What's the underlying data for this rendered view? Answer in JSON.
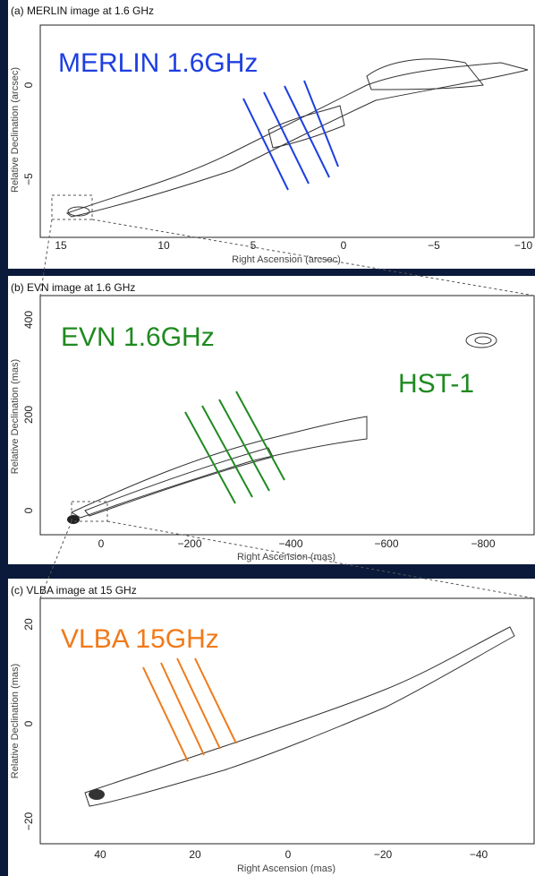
{
  "panels": [
    {
      "title": "(a) MERLIN image at 1.6 GHz",
      "overlays": [
        "MERLIN 1.6GHz"
      ],
      "x_axis_label": "Right Ascension   (arcsec)",
      "y_axis_label": "Relative Declination   (arcsec)",
      "x_ticks": [
        "15",
        "10",
        "5",
        "0",
        "−5",
        "−10"
      ],
      "y_ticks": [
        "0",
        "−5"
      ]
    },
    {
      "title": "(b) EVN image at 1.6 GHz",
      "overlays": [
        "EVN 1.6GHz",
        "HST-1"
      ],
      "x_axis_label": "Right Ascension   (mas)",
      "y_axis_label": "Relative Declination   (mas)",
      "x_ticks": [
        "0",
        "−200",
        "−400",
        "−600",
        "−800"
      ],
      "y_ticks": [
        "400",
        "200",
        "0"
      ]
    },
    {
      "title": "(c) VLBA image at 15 GHz",
      "overlays": [
        "VLBA 15GHz"
      ],
      "x_axis_label": "Right Ascension   (mas)",
      "y_axis_label": "Relative Declination   (mas)",
      "x_ticks": [
        "40",
        "20",
        "0",
        "−20",
        "−40"
      ],
      "y_ticks": [
        "20",
        "0",
        "−20"
      ]
    }
  ]
}
